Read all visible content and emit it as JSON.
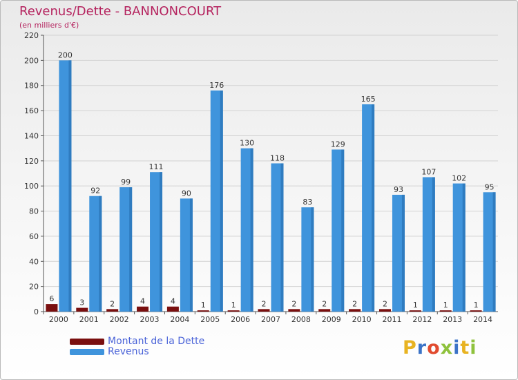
{
  "header": {
    "title": "Revenus/Dette - BANNONCOURT",
    "subtitle": "(en milliers d'€)"
  },
  "logo": {
    "text": "Proxiti",
    "colors": [
      "#e8b321",
      "#3b73c7",
      "#e14b2f",
      "#8fc23d",
      "#3b73c7",
      "#e8b321",
      "#8fc23d"
    ]
  },
  "chart_data": {
    "type": "bar",
    "categories": [
      "2000",
      "2001",
      "2002",
      "2003",
      "2004",
      "2005",
      "2006",
      "2007",
      "2008",
      "2009",
      "2010",
      "2011",
      "2012",
      "2013",
      "2014"
    ],
    "series": [
      {
        "name": "Montant de la Dette",
        "color": "#7a0f0f",
        "values": [
          6,
          3,
          2,
          4,
          4,
          1,
          1,
          2,
          2,
          2,
          2,
          2,
          1,
          1,
          1
        ],
        "labels": [
          "6",
          "3",
          "2",
          "4",
          "4",
          "1",
          "1",
          "2",
          "2",
          "2",
          "2",
          "2",
          "1",
          "1",
          "1"
        ]
      },
      {
        "name": "Revenus",
        "color": "#3f94dc",
        "values": [
          200,
          92,
          99,
          111,
          90,
          176,
          130,
          118,
          83,
          129,
          165,
          93,
          107,
          102,
          95
        ],
        "labels": [
          "200",
          "92",
          "99",
          "111",
          "90",
          "176",
          "130",
          "118",
          "83",
          "129",
          "165",
          "93",
          "107",
          "102",
          "95"
        ]
      }
    ],
    "ylim": [
      0,
      220
    ],
    "yticks": [
      "0",
      "20",
      "40",
      "60",
      "80",
      "100",
      "120",
      "140",
      "160",
      "180",
      "200",
      "220"
    ],
    "grid": true,
    "legend_position": "bottom-left"
  }
}
